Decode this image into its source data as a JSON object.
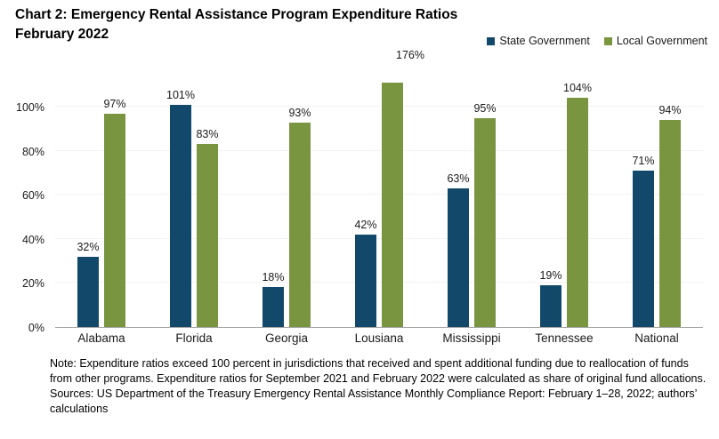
{
  "header": {
    "title_line1": "Chart 2: Emergency Rental Assistance Program Expenditure Ratios",
    "title_line2": "February 2022"
  },
  "chart_data": {
    "type": "bar",
    "title": "Chart 2: Emergency Rental Assistance Program Expenditure Ratios — February 2022",
    "categories": [
      "Alabama",
      "Florida",
      "Georgia",
      "Lousiana",
      "Mississippi",
      "Tennessee",
      "National"
    ],
    "series": [
      {
        "name": "State Government",
        "color": "#12496b",
        "values": [
          32,
          101,
          18,
          42,
          63,
          19,
          71
        ]
      },
      {
        "name": "Local Government",
        "color": "#7a9540",
        "values": [
          97,
          83,
          93,
          176,
          95,
          104,
          94
        ]
      }
    ],
    "value_label_suffix": "%",
    "xlabel": "",
    "ylabel": "",
    "yticks": [
      0,
      20,
      40,
      60,
      80,
      100
    ],
    "ytick_suffix": "%",
    "ylim": [
      0,
      111
    ],
    "grid": "horizontal",
    "gridline_color": "#f2f2f2",
    "axis_line_color": "#a6a6a6",
    "legend_position": "top-right",
    "clipped_note": "Lousiana Local Government bar (176%) is clipped at top of plot area"
  },
  "footer": {
    "note": "Note: Expenditure ratios exceed 100 percent in jurisdictions that received and spent additional funding due to reallocation of funds from other programs. Expenditure ratios for September 2021 and February 2022 were calculated as share of original fund allocations.",
    "sources": "Sources: US Department of the Treasury Emergency Rental Assistance Monthly Compliance Report: February 1–28, 2022; authors’ calculations"
  }
}
